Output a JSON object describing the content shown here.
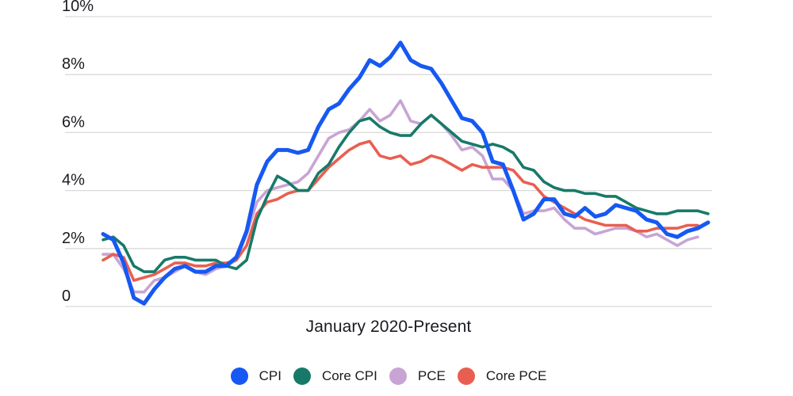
{
  "chart_data": {
    "type": "line",
    "title": "",
    "xlabel": "January 2020-Present",
    "ylabel": "",
    "ylim": [
      0,
      10
    ],
    "grid": true,
    "legend_position": "bottom",
    "x_interval": "monthly",
    "yticks": [
      {
        "value": 0,
        "label": "0"
      },
      {
        "value": 2,
        "label": "2%"
      },
      {
        "value": 4,
        "label": "4%"
      },
      {
        "value": 6,
        "label": "6%"
      },
      {
        "value": 8,
        "label": "8%"
      },
      {
        "value": 10,
        "label": "10%"
      }
    ],
    "grid_color": "#d9d9d9",
    "text_color": "#1a1b20",
    "draw_order": [
      "PCE",
      "Core PCE",
      "Core CPI",
      "CPI"
    ],
    "series": [
      {
        "name": "CPI",
        "color": "#1659f2",
        "stroke_width": 5,
        "values": [
          2.5,
          2.3,
          1.5,
          0.3,
          0.1,
          0.6,
          1.0,
          1.3,
          1.4,
          1.2,
          1.2,
          1.4,
          1.4,
          1.7,
          2.6,
          4.2,
          5.0,
          5.4,
          5.4,
          5.3,
          5.4,
          6.2,
          6.8,
          7.0,
          7.5,
          7.9,
          8.5,
          8.3,
          8.6,
          9.1,
          8.5,
          8.3,
          8.2,
          7.7,
          7.1,
          6.5,
          6.4,
          6.0,
          5.0,
          4.9,
          4.0,
          3.0,
          3.2,
          3.7,
          3.7,
          3.2,
          3.1,
          3.4,
          3.1,
          3.2,
          3.5,
          3.4,
          3.3,
          3.0,
          2.9,
          2.5,
          2.4,
          2.6,
          2.7,
          2.9
        ]
      },
      {
        "name": "Core CPI",
        "color": "#177a68",
        "stroke_width": 3.6,
        "values": [
          2.3,
          2.4,
          2.1,
          1.4,
          1.2,
          1.2,
          1.6,
          1.7,
          1.7,
          1.6,
          1.6,
          1.6,
          1.4,
          1.3,
          1.6,
          3.0,
          3.8,
          4.5,
          4.3,
          4.0,
          4.0,
          4.6,
          4.9,
          5.5,
          6.0,
          6.4,
          6.5,
          6.2,
          6.0,
          5.9,
          5.9,
          6.3,
          6.6,
          6.3,
          6.0,
          5.7,
          5.6,
          5.5,
          5.6,
          5.5,
          5.3,
          4.8,
          4.7,
          4.3,
          4.1,
          4.0,
          4.0,
          3.9,
          3.9,
          3.8,
          3.8,
          3.6,
          3.4,
          3.3,
          3.2,
          3.2,
          3.3,
          3.3,
          3.3,
          3.2
        ]
      },
      {
        "name": "PCE",
        "color": "#c8a4d4",
        "stroke_width": 3.6,
        "values": [
          1.8,
          1.8,
          1.3,
          0.5,
          0.5,
          0.9,
          1.0,
          1.2,
          1.4,
          1.2,
          1.1,
          1.3,
          1.4,
          1.6,
          2.5,
          3.6,
          4.0,
          4.1,
          4.2,
          4.3,
          4.6,
          5.2,
          5.8,
          6.0,
          6.1,
          6.4,
          6.8,
          6.4,
          6.6,
          7.1,
          6.4,
          6.3,
          6.6,
          6.3,
          5.9,
          5.4,
          5.5,
          5.2,
          4.4,
          4.4,
          4.0,
          3.2,
          3.3,
          3.3,
          3.4,
          3.0,
          2.7,
          2.7,
          2.5,
          2.6,
          2.7,
          2.7,
          2.6,
          2.4,
          2.5,
          2.3,
          2.1,
          2.3,
          2.4
        ]
      },
      {
        "name": "Core PCE",
        "color": "#e85f51",
        "stroke_width": 3.6,
        "values": [
          1.6,
          1.8,
          1.7,
          0.9,
          1.0,
          1.1,
          1.3,
          1.5,
          1.5,
          1.4,
          1.4,
          1.5,
          1.5,
          1.6,
          2.1,
          3.2,
          3.6,
          3.7,
          3.9,
          4.0,
          4.0,
          4.4,
          4.8,
          5.1,
          5.4,
          5.6,
          5.7,
          5.2,
          5.1,
          5.2,
          4.9,
          5.0,
          5.2,
          5.1,
          4.9,
          4.7,
          4.9,
          4.8,
          4.8,
          4.8,
          4.7,
          4.3,
          4.2,
          3.8,
          3.6,
          3.4,
          3.2,
          3.0,
          2.9,
          2.8,
          2.8,
          2.8,
          2.6,
          2.6,
          2.7,
          2.7,
          2.7,
          2.8,
          2.8
        ]
      }
    ]
  },
  "legend": {
    "items": [
      {
        "label": "CPI"
      },
      {
        "label": "Core CPI"
      },
      {
        "label": "PCE"
      },
      {
        "label": "Core PCE"
      }
    ]
  }
}
